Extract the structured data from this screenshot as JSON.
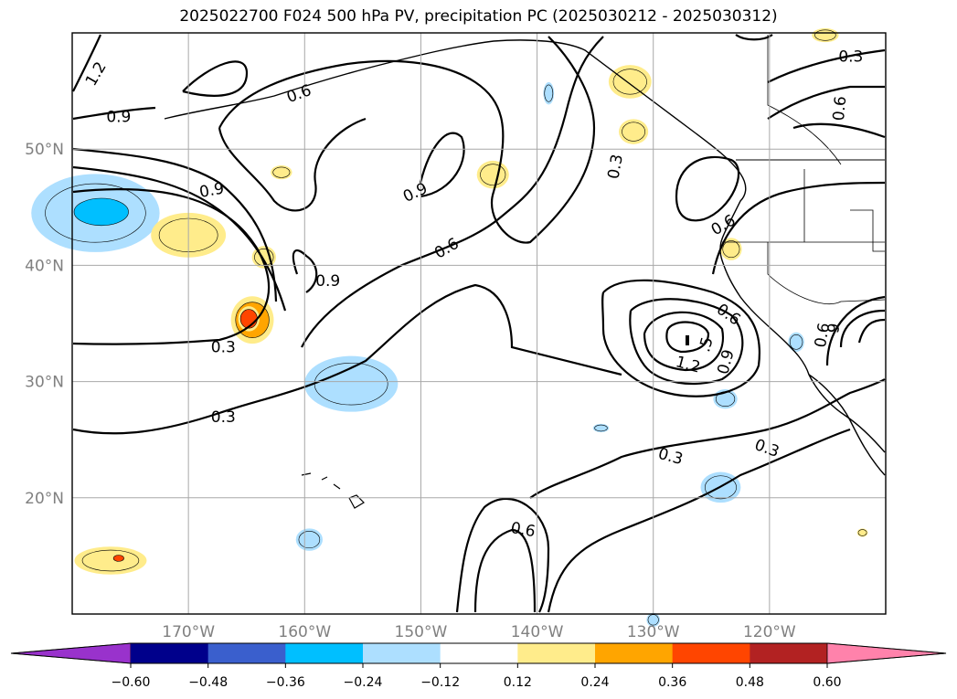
{
  "chart_data": {
    "type": "contour_map",
    "title": "2025022700 F024 500 hPa PV, precipitation PC (2025030212 - 2025030312)",
    "xlim": [
      -180,
      -110
    ],
    "ylim": [
      10,
      60
    ],
    "grid": true,
    "lon_ticks": [
      {
        "value": -170,
        "label": "170°W"
      },
      {
        "value": -160,
        "label": "160°W"
      },
      {
        "value": -150,
        "label": "150°W"
      },
      {
        "value": -140,
        "label": "140°W"
      },
      {
        "value": -130,
        "label": "130°W"
      },
      {
        "value": -120,
        "label": "120°W"
      }
    ],
    "lat_ticks": [
      {
        "value": 20,
        "label": "20°N"
      },
      {
        "value": 30,
        "label": "30°N"
      },
      {
        "value": 40,
        "label": "40°N"
      },
      {
        "value": 50,
        "label": "50°N"
      }
    ],
    "contour_labels": [
      {
        "text": "1.2",
        "lon": -178,
        "lat": 56.5,
        "rot": -60
      },
      {
        "text": "0.9",
        "lon": -176,
        "lat": 52.8,
        "rot": 0
      },
      {
        "text": "0.6",
        "lon": -160.5,
        "lat": 54.8,
        "rot": -20
      },
      {
        "text": "0.9",
        "lon": -168,
        "lat": 46.5,
        "rot": -10
      },
      {
        "text": "0.9",
        "lon": -150.5,
        "lat": 46.3,
        "rot": -25
      },
      {
        "text": "0.6",
        "lon": -147.8,
        "lat": 41.5,
        "rot": -30
      },
      {
        "text": "0.9",
        "lon": -158,
        "lat": 38.7,
        "rot": 0
      },
      {
        "text": "0.3",
        "lon": -167,
        "lat": 33.0,
        "rot": 0
      },
      {
        "text": "0.3",
        "lon": -167,
        "lat": 27.0,
        "rot": 0
      },
      {
        "text": "0.3",
        "lon": -133.3,
        "lat": 48.5,
        "rot": -80
      },
      {
        "text": "0.3",
        "lon": -113.0,
        "lat": 58.0,
        "rot": 0
      },
      {
        "text": "0.6",
        "lon": -114.0,
        "lat": 53.5,
        "rot": -85
      },
      {
        "text": "0.6",
        "lon": -124.0,
        "lat": 43.5,
        "rot": -30
      },
      {
        "text": "0.6",
        "lon": -123.5,
        "lat": 35.8,
        "rot": 35
      },
      {
        "text": ".5",
        "lon": -125.5,
        "lat": 33.2,
        "rot": -75
      },
      {
        "text": "0.9",
        "lon": -123.8,
        "lat": 31.7,
        "rot": -75
      },
      {
        "text": "1.2",
        "lon": -127.0,
        "lat": 31.5,
        "rot": 15
      },
      {
        "text": "0.3",
        "lon": -128.5,
        "lat": 23.6,
        "rot": 15
      },
      {
        "text": "0.3",
        "lon": -120.2,
        "lat": 24.3,
        "rot": 20
      },
      {
        "text": "0.6",
        "lon": -141.2,
        "lat": 17.3,
        "rot": 10
      },
      {
        "text": "0.6",
        "lon": -115.5,
        "lat": 34.0,
        "rot": -80
      },
      {
        "text": "9",
        "lon": -114.5,
        "lat": 34.6,
        "rot": -80
      }
    ],
    "colorbar": {
      "levels": [
        -0.6,
        -0.48,
        -0.36,
        -0.24,
        -0.12,
        0.12,
        0.24,
        0.36,
        0.48,
        0.6
      ],
      "tick_labels": [
        "−0.60",
        "−0.48",
        "−0.36",
        "−0.24",
        "−0.12",
        "0.12",
        "0.24",
        "0.36",
        "0.48",
        "0.60"
      ],
      "colors": [
        "#9932CC",
        "#00008B",
        "#3A5FCD",
        "#00BFFF",
        "#ADDFFF",
        "#FFFFFF",
        "#FFEC8B",
        "#FFA500",
        "#FF4500",
        "#B22222",
        "#FF82AB"
      ],
      "extend": "both"
    },
    "precip_areas": [
      {
        "lon": -178.0,
        "lat": 44.5,
        "rlon": 4.8,
        "rlat": 2.8,
        "level": -0.24
      },
      {
        "lon": -177.5,
        "lat": 44.6,
        "rlon": 2.6,
        "rlat": 1.3,
        "level": -0.36
      },
      {
        "lon": -170.0,
        "lat": 42.6,
        "rlon": 2.8,
        "rlat": 1.6,
        "level": 0.12
      },
      {
        "lon": -164.5,
        "lat": 35.3,
        "rlon": 1.6,
        "rlat": 1.7,
        "level": 0.24
      },
      {
        "lon": -164.8,
        "lat": 35.4,
        "rlon": 0.8,
        "rlat": 0.9,
        "level": 0.36
      },
      {
        "lon": -163.5,
        "lat": 40.7,
        "rlon": 0.9,
        "rlat": 0.8,
        "level": 0.12
      },
      {
        "lon": -162.0,
        "lat": 48.0,
        "rlon": 0.8,
        "rlat": 0.5,
        "level": 0.12
      },
      {
        "lon": -156.0,
        "lat": 29.8,
        "rlon": 3.5,
        "rlat": 2.0,
        "level": -0.24
      },
      {
        "lon": -143.8,
        "lat": 47.8,
        "rlon": 1.2,
        "rlat": 1.0,
        "level": 0.12
      },
      {
        "lon": -139.0,
        "lat": 54.8,
        "rlon": 0.4,
        "rlat": 0.8,
        "level": -0.24
      },
      {
        "lon": -132.0,
        "lat": 55.8,
        "rlon": 1.6,
        "rlat": 1.2,
        "level": 0.12
      },
      {
        "lon": -131.7,
        "lat": 51.5,
        "rlon": 1.1,
        "rlat": 0.9,
        "level": 0.12
      },
      {
        "lon": -123.3,
        "lat": 41.4,
        "rlon": 0.8,
        "rlat": 0.8,
        "level": 0.12
      },
      {
        "lon": -117.7,
        "lat": 33.4,
        "rlon": 0.6,
        "rlat": 0.7,
        "level": -0.24
      },
      {
        "lon": -123.8,
        "lat": 28.5,
        "rlon": 0.9,
        "rlat": 0.7,
        "level": -0.24
      },
      {
        "lon": -124.2,
        "lat": 20.9,
        "rlon": 1.5,
        "rlat": 1.1,
        "level": -0.24
      },
      {
        "lon": -134.5,
        "lat": 26.0,
        "rlon": 0.6,
        "rlat": 0.3,
        "level": -0.24
      },
      {
        "lon": -159.6,
        "lat": 16.4,
        "rlon": 1.0,
        "rlat": 0.8,
        "level": -0.24
      },
      {
        "lon": -176.7,
        "lat": 14.6,
        "rlon": 2.7,
        "rlat": 1.0,
        "level": 0.12
      },
      {
        "lon": -176.0,
        "lat": 14.8,
        "rlon": 0.5,
        "rlat": 0.3,
        "level": 0.36
      },
      {
        "lon": -112.0,
        "lat": 17.0,
        "rlon": 0.4,
        "rlat": 0.3,
        "level": 0.12
      },
      {
        "lon": -115.2,
        "lat": 59.8,
        "rlon": 1.0,
        "rlat": 0.5,
        "level": 0.12
      },
      {
        "lon": -130.0,
        "lat": 9.5,
        "rlon": 0.5,
        "rlat": 0.5,
        "level": -0.24
      }
    ]
  }
}
